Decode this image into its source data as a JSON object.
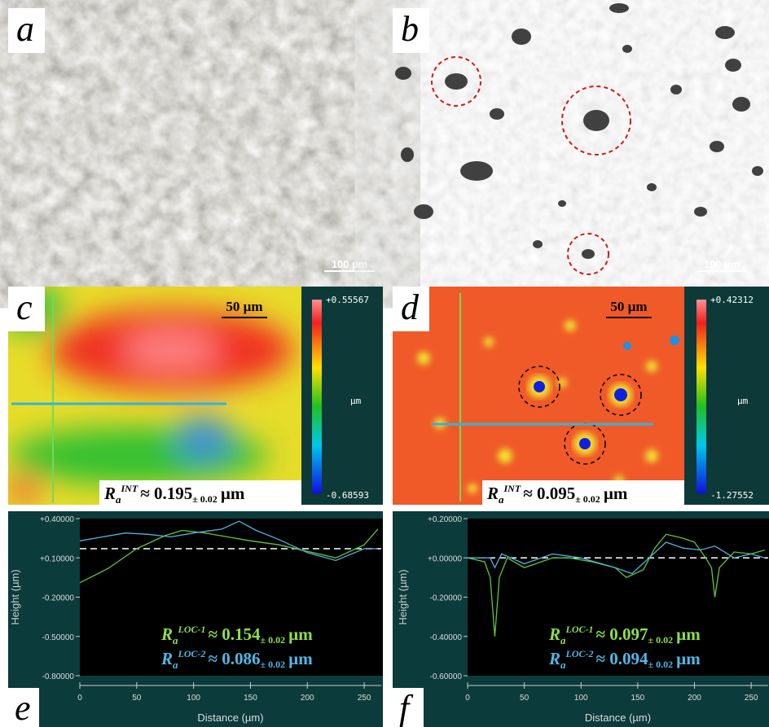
{
  "panels": {
    "a": {
      "label": "a",
      "scale_bar": "100 µm"
    },
    "b": {
      "label": "b",
      "scale_bar": "100 µm"
    },
    "c": {
      "label": "c",
      "scale_bar": "50 µm",
      "colorbar": {
        "max": "+0.55567",
        "unit": "µm",
        "min": "-0.68593"
      },
      "roughness": {
        "symbol": "R",
        "sub": "a",
        "sup": "INT",
        "value": "≈ 0.195",
        "tolerance": "± 0.02",
        "unit": "µm"
      }
    },
    "d": {
      "label": "d",
      "scale_bar": "50 µm",
      "colorbar": {
        "max": "+0.42312",
        "unit": "µm",
        "min": "-1.27552"
      },
      "roughness": {
        "symbol": "R",
        "sub": "a",
        "sup": "INT",
        "value": "≈ 0.095",
        "tolerance": "± 0.02",
        "unit": "µm"
      }
    },
    "e": {
      "label": "e"
    },
    "f": {
      "label": "f"
    }
  },
  "chart_data": [
    {
      "type": "line",
      "xlabel": "Distance (µm)",
      "ylabel": "Height (µm)",
      "xlim": [
        0,
        265
      ],
      "xticks": [
        0,
        50,
        100,
        150,
        200,
        250
      ],
      "ylim": [
        -0.8,
        0.4
      ],
      "yticks": [
        {
          "value": 0.4,
          "label": "+0.40000"
        },
        {
          "value": 0.1,
          "label": "+0.10000"
        },
        {
          "value": -0.2,
          "label": "-0.20000"
        },
        {
          "value": -0.5,
          "label": "-0.50000"
        },
        {
          "value": -0.8,
          "label": "-0.80000"
        }
      ],
      "mean_line": 0.17,
      "series": [
        {
          "color": "#5cc83a",
          "x": [
            0,
            25,
            50,
            75,
            90,
            110,
            130,
            150,
            175,
            200,
            225,
            250,
            262
          ],
          "values": [
            -0.09,
            0.02,
            0.17,
            0.27,
            0.31,
            0.29,
            0.26,
            0.23,
            0.2,
            0.15,
            0.1,
            0.2,
            0.32
          ]
        },
        {
          "color": "#4fb3e0",
          "x": [
            0,
            20,
            40,
            60,
            80,
            100,
            125,
            140,
            155,
            175,
            200,
            225,
            250,
            262
          ],
          "values": [
            0.23,
            0.26,
            0.29,
            0.28,
            0.26,
            0.29,
            0.32,
            0.38,
            0.31,
            0.24,
            0.14,
            0.08,
            0.17,
            0.17
          ]
        }
      ],
      "annotations": [
        {
          "color": "#8ee04a",
          "symbol": "R",
          "sub": "a",
          "sup": "LOC-1",
          "value": "≈ 0.154",
          "tolerance": "± 0.02",
          "unit": "µm"
        },
        {
          "color": "#4fb8e8",
          "symbol": "R",
          "sub": "a",
          "sup": "LOC-2",
          "value": "≈ 0.086",
          "tolerance": "± 0.02",
          "unit": "µm"
        }
      ]
    },
    {
      "type": "line",
      "xlabel": "Distance (µm)",
      "ylabel": "Height (µm)",
      "xlim": [
        0,
        265
      ],
      "xticks": [
        0,
        50,
        100,
        150,
        200,
        250
      ],
      "ylim": [
        -0.6,
        0.2
      ],
      "yticks": [
        {
          "value": 0.2,
          "label": "+0.20000"
        },
        {
          "value": 0,
          "label": "+0.00000"
        },
        {
          "value": -0.2,
          "label": "-0.20000"
        },
        {
          "value": -0.4,
          "label": "-0.40000"
        },
        {
          "value": -0.6,
          "label": "-0.60000"
        }
      ],
      "mean_line": 0,
      "series": [
        {
          "color": "#5cc83a",
          "x": [
            0,
            15,
            20,
            24,
            28,
            35,
            50,
            75,
            90,
            110,
            130,
            140,
            155,
            165,
            175,
            190,
            200,
            210,
            215,
            218,
            222,
            235,
            250,
            262
          ],
          "values": [
            0,
            -0.02,
            -0.1,
            -0.4,
            -0.1,
            0,
            -0.05,
            0,
            0,
            -0.02,
            -0.05,
            -0.1,
            -0.06,
            0.05,
            0.12,
            0.1,
            0.08,
            0,
            -0.05,
            -0.2,
            -0.05,
            0.03,
            0.02,
            0.04
          ]
        },
        {
          "color": "#4fb3e0",
          "x": [
            0,
            20,
            24,
            30,
            50,
            75,
            100,
            130,
            145,
            160,
            175,
            190,
            205,
            218,
            235,
            250,
            262
          ],
          "values": [
            0,
            0,
            -0.05,
            0.02,
            -0.03,
            0.02,
            0,
            -0.05,
            -0.08,
            0,
            0.08,
            0.05,
            0.04,
            0.06,
            0,
            0.02,
            0
          ]
        }
      ],
      "annotations": [
        {
          "color": "#8ee04a",
          "symbol": "R",
          "sub": "a",
          "sup": "LOC-1",
          "value": "≈ 0.097",
          "tolerance": "± 0.02",
          "unit": "µm"
        },
        {
          "color": "#4fb8e8",
          "symbol": "R",
          "sub": "a",
          "sup": "LOC-2",
          "value": "≈ 0.094",
          "tolerance": "± 0.02",
          "unit": "µm"
        }
      ]
    }
  ]
}
